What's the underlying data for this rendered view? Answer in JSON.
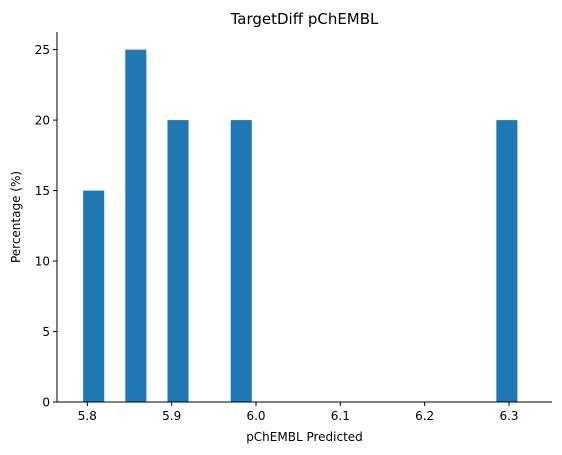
{
  "chart_data": {
    "type": "bar",
    "title": "TargetDiff pChEMBL",
    "xlabel": "pChEMBL Predicted",
    "ylabel": "Percentage (%)",
    "bar_width": 0.025,
    "bars": [
      {
        "x": 5.8075,
        "value": 15
      },
      {
        "x": 5.8575,
        "value": 25
      },
      {
        "x": 5.9075,
        "value": 20
      },
      {
        "x": 5.9825,
        "value": 20
      },
      {
        "x": 6.2975,
        "value": 20
      }
    ],
    "xlim": [
      5.764,
      6.351
    ],
    "ylim": [
      0,
      26.25
    ],
    "xticks": [
      5.8,
      5.9,
      6.0,
      6.1,
      6.2,
      6.3
    ],
    "xtick_labels": [
      "5.8",
      "5.9",
      "6.0",
      "6.1",
      "6.2",
      "6.3"
    ],
    "yticks": [
      0,
      5,
      10,
      15,
      20,
      25
    ],
    "ytick_labels": [
      "0",
      "5",
      "10",
      "15",
      "20",
      "25"
    ],
    "grid": false,
    "bar_color": "#1f77b4",
    "spines": [
      "left",
      "bottom"
    ]
  }
}
